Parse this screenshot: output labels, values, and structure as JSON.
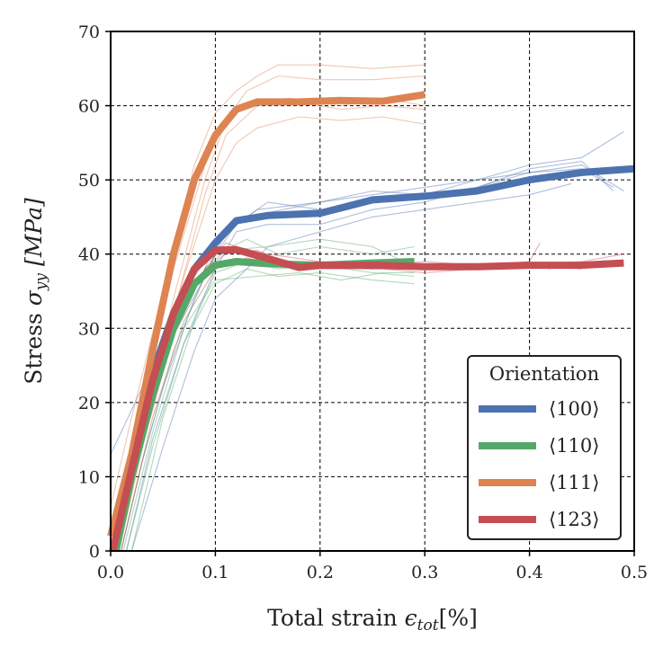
{
  "chart_data": {
    "type": "line",
    "title": "",
    "xlabel_main": "Total strain ",
    "xlabel_symbol": "ϵ",
    "xlabel_sub": "tot",
    "xlabel_unit": "[%]",
    "ylabel_main": "Stress ",
    "ylabel_symbol": "σ",
    "ylabel_sub": "yy",
    "ylabel_unit": "[MPa]",
    "xlim": [
      0.0,
      0.5
    ],
    "ylim": [
      0,
      70
    ],
    "xticks": [
      "0.0",
      "0.1",
      "0.2",
      "0.3",
      "0.4",
      "0.5"
    ],
    "yticks": [
      "0",
      "10",
      "20",
      "30",
      "40",
      "50",
      "60",
      "70"
    ],
    "grid": true,
    "legend": {
      "title": "Orientation",
      "position": "lower-right",
      "entries": [
        "⟨100⟩",
        "⟨110⟩",
        "⟨111⟩",
        "⟨123⟩"
      ]
    },
    "series": [
      {
        "name": "⟨100⟩",
        "color": "#4c72b0",
        "mean": [
          [
            0.003,
            0
          ],
          [
            0.02,
            12
          ],
          [
            0.04,
            24
          ],
          [
            0.06,
            32
          ],
          [
            0.08,
            38
          ],
          [
            0.1,
            41.5
          ],
          [
            0.12,
            44.5
          ],
          [
            0.15,
            45.2
          ],
          [
            0.2,
            45.5
          ],
          [
            0.25,
            47.3
          ],
          [
            0.3,
            47.8
          ],
          [
            0.35,
            48.5
          ],
          [
            0.4,
            50
          ],
          [
            0.45,
            51
          ],
          [
            0.5,
            51.5
          ]
        ],
        "samples": [
          [
            [
              0,
              13
            ],
            [
              0.03,
              22
            ],
            [
              0.06,
              31
            ],
            [
              0.09,
              38
            ],
            [
              0.1,
              42
            ],
            [
              0.13,
              45
            ],
            [
              0.2,
              47
            ],
            [
              0.25,
              48
            ],
            [
              0.3,
              49
            ],
            [
              0.35,
              50
            ],
            [
              0.4,
              52
            ],
            [
              0.45,
              53
            ],
            [
              0.49,
              56.5
            ]
          ],
          [
            [
              0.01,
              0
            ],
            [
              0.03,
              12
            ],
            [
              0.05,
              22
            ],
            [
              0.08,
              34
            ],
            [
              0.1,
              40
            ],
            [
              0.12,
              44
            ],
            [
              0.15,
              47
            ],
            [
              0.2,
              46
            ],
            [
              0.25,
              47
            ],
            [
              0.3,
              48
            ],
            [
              0.35,
              49
            ],
            [
              0.4,
              51
            ],
            [
              0.45,
              51.5
            ],
            [
              0.48,
              49
            ]
          ],
          [
            [
              0.015,
              0
            ],
            [
              0.04,
              15
            ],
            [
              0.07,
              28
            ],
            [
              0.1,
              38
            ],
            [
              0.12,
              43
            ],
            [
              0.15,
              44
            ],
            [
              0.2,
              44
            ],
            [
              0.25,
              46
            ],
            [
              0.3,
              47
            ],
            [
              0.35,
              49
            ],
            [
              0.4,
              51.5
            ],
            [
              0.45,
              52.5
            ],
            [
              0.48,
              48.5
            ]
          ],
          [
            [
              0.02,
              0
            ],
            [
              0.05,
              14
            ],
            [
              0.08,
              27
            ],
            [
              0.1,
              34
            ],
            [
              0.13,
              38
            ],
            [
              0.15,
              41
            ],
            [
              0.2,
              43
            ],
            [
              0.25,
              45
            ],
            [
              0.3,
              46
            ],
            [
              0.35,
              47
            ],
            [
              0.4,
              48
            ],
            [
              0.44,
              49.5
            ]
          ],
          [
            [
              0.005,
              0
            ],
            [
              0.03,
              15
            ],
            [
              0.06,
              29
            ],
            [
              0.09,
              37
            ],
            [
              0.11,
              43
            ],
            [
              0.14,
              46
            ],
            [
              0.2,
              47
            ],
            [
              0.25,
              48.5
            ],
            [
              0.3,
              48
            ],
            [
              0.35,
              50
            ],
            [
              0.4,
              51
            ],
            [
              0.45,
              52
            ],
            [
              0.49,
              48.5
            ]
          ]
        ]
      },
      {
        "name": "⟨110⟩",
        "color": "#55a868",
        "mean": [
          [
            0.005,
            0
          ],
          [
            0.02,
            10
          ],
          [
            0.04,
            21
          ],
          [
            0.06,
            30
          ],
          [
            0.08,
            36
          ],
          [
            0.1,
            38.5
          ],
          [
            0.12,
            39
          ],
          [
            0.15,
            38.7
          ],
          [
            0.2,
            38.5
          ],
          [
            0.25,
            38.8
          ],
          [
            0.29,
            39
          ]
        ],
        "samples": [
          [
            [
              0.01,
              0
            ],
            [
              0.03,
              12
            ],
            [
              0.06,
              27
            ],
            [
              0.09,
              37
            ],
            [
              0.1,
              40
            ],
            [
              0.13,
              42
            ],
            [
              0.16,
              40
            ],
            [
              0.2,
              41
            ],
            [
              0.25,
              40
            ],
            [
              0.29,
              41
            ]
          ],
          [
            [
              0.015,
              0
            ],
            [
              0.04,
              14
            ],
            [
              0.07,
              28
            ],
            [
              0.1,
              36
            ],
            [
              0.13,
              38
            ],
            [
              0.16,
              37
            ],
            [
              0.2,
              37.5
            ],
            [
              0.25,
              36.5
            ],
            [
              0.29,
              36
            ]
          ],
          [
            [
              0.02,
              0
            ],
            [
              0.05,
              18
            ],
            [
              0.08,
              31
            ],
            [
              0.1,
              37.5
            ],
            [
              0.13,
              39
            ],
            [
              0.16,
              38
            ],
            [
              0.2,
              38.5
            ],
            [
              0.25,
              37.5
            ],
            [
              0.29,
              37
            ]
          ],
          [
            [
              0.008,
              0
            ],
            [
              0.03,
              15
            ],
            [
              0.06,
              30
            ],
            [
              0.09,
              38
            ],
            [
              0.11,
              40.5
            ],
            [
              0.15,
              41
            ],
            [
              0.2,
              42
            ],
            [
              0.25,
              41
            ],
            [
              0.28,
              39
            ]
          ],
          [
            [
              0.012,
              0
            ],
            [
              0.04,
              16
            ],
            [
              0.07,
              30
            ],
            [
              0.1,
              36.5
            ],
            [
              0.14,
              37
            ],
            [
              0.18,
              37.5
            ],
            [
              0.22,
              36.5
            ],
            [
              0.26,
              37.5
            ],
            [
              0.29,
              37.5
            ]
          ]
        ]
      },
      {
        "name": "⟨111⟩",
        "color": "#dd8452",
        "mean": [
          [
            0,
            2
          ],
          [
            0.02,
            13
          ],
          [
            0.04,
            27
          ],
          [
            0.06,
            40
          ],
          [
            0.08,
            50
          ],
          [
            0.1,
            56
          ],
          [
            0.12,
            59.5
          ],
          [
            0.14,
            60.5
          ],
          [
            0.18,
            60.5
          ],
          [
            0.22,
            60.7
          ],
          [
            0.26,
            60.6
          ],
          [
            0.3,
            61.5
          ]
        ],
        "samples": [
          [
            [
              0,
              6
            ],
            [
              0.02,
              18
            ],
            [
              0.05,
              35
            ],
            [
              0.08,
              52
            ],
            [
              0.1,
              59
            ],
            [
              0.12,
              62
            ],
            [
              0.14,
              64
            ],
            [
              0.16,
              65.5
            ],
            [
              0.2,
              65.5
            ],
            [
              0.25,
              65
            ],
            [
              0.3,
              65.5
            ]
          ],
          [
            [
              0,
              0
            ],
            [
              0.03,
              16
            ],
            [
              0.06,
              34
            ],
            [
              0.09,
              50
            ],
            [
              0.11,
              58
            ],
            [
              0.13,
              62
            ],
            [
              0.16,
              64
            ],
            [
              0.2,
              63.5
            ],
            [
              0.25,
              63.5
            ],
            [
              0.3,
              64
            ]
          ],
          [
            [
              0.005,
              0
            ],
            [
              0.03,
              15
            ],
            [
              0.06,
              32
            ],
            [
              0.09,
              48
            ],
            [
              0.11,
              56
            ],
            [
              0.14,
              60
            ],
            [
              0.18,
              60.5
            ],
            [
              0.22,
              59.5
            ],
            [
              0.26,
              60
            ],
            [
              0.3,
              59.5
            ]
          ],
          [
            [
              0.008,
              0
            ],
            [
              0.04,
              20
            ],
            [
              0.07,
              37
            ],
            [
              0.1,
              50
            ],
            [
              0.12,
              55
            ],
            [
              0.14,
              57
            ],
            [
              0.18,
              58.5
            ],
            [
              0.22,
              58
            ],
            [
              0.26,
              58.5
            ],
            [
              0.3,
              57.5
            ]
          ],
          [
            [
              0.002,
              3
            ],
            [
              0.03,
              20
            ],
            [
              0.06,
              38
            ],
            [
              0.09,
              52
            ],
            [
              0.11,
              58
            ],
            [
              0.13,
              60
            ],
            [
              0.17,
              61
            ],
            [
              0.22,
              60
            ],
            [
              0.26,
              61
            ],
            [
              0.3,
              60
            ]
          ]
        ]
      },
      {
        "name": "⟨123⟩",
        "color": "#c44e52",
        "mean": [
          [
            0.002,
            0
          ],
          [
            0.02,
            11
          ],
          [
            0.04,
            23
          ],
          [
            0.06,
            32
          ],
          [
            0.08,
            38
          ],
          [
            0.1,
            40.5
          ],
          [
            0.12,
            40.6
          ],
          [
            0.14,
            39.8
          ],
          [
            0.16,
            39
          ],
          [
            0.18,
            38.2
          ],
          [
            0.2,
            38.5
          ],
          [
            0.25,
            38.5
          ],
          [
            0.3,
            38.3
          ],
          [
            0.35,
            38.3
          ],
          [
            0.4,
            38.5
          ],
          [
            0.45,
            38.5
          ],
          [
            0.49,
            38.8
          ]
        ],
        "samples": [
          [
            [
              0,
              3
            ],
            [
              0.02,
              14
            ],
            [
              0.05,
              28
            ],
            [
              0.08,
              37
            ],
            [
              0.1,
              41
            ],
            [
              0.12,
              41
            ],
            [
              0.15,
              40
            ],
            [
              0.2,
              39
            ],
            [
              0.25,
              38.5
            ],
            [
              0.3,
              38
            ],
            [
              0.35,
              38.5
            ],
            [
              0.4,
              38.5
            ],
            [
              0.42,
              38
            ]
          ],
          [
            [
              0.005,
              0
            ],
            [
              0.03,
              16
            ],
            [
              0.06,
              30
            ],
            [
              0.09,
              38
            ],
            [
              0.11,
              41.5
            ],
            [
              0.14,
              40
            ],
            [
              0.18,
              38.5
            ],
            [
              0.22,
              39
            ],
            [
              0.26,
              38.5
            ],
            [
              0.3,
              39
            ],
            [
              0.35,
              38.5
            ],
            [
              0.4,
              39
            ],
            [
              0.41,
              41.5
            ]
          ],
          [
            [
              0.01,
              0
            ],
            [
              0.04,
              18
            ],
            [
              0.07,
              31
            ],
            [
              0.1,
              38
            ],
            [
              0.13,
              39.5
            ],
            [
              0.16,
              38.5
            ],
            [
              0.2,
              38.5
            ],
            [
              0.25,
              38
            ],
            [
              0.3,
              38.5
            ],
            [
              0.35,
              38
            ],
            [
              0.4,
              38.5
            ],
            [
              0.45,
              39
            ],
            [
              0.49,
              40
            ]
          ],
          [
            [
              0.003,
              0
            ],
            [
              0.03,
              14
            ],
            [
              0.06,
              29
            ],
            [
              0.09,
              38
            ],
            [
              0.11,
              40
            ],
            [
              0.14,
              40.5
            ],
            [
              0.18,
              38
            ],
            [
              0.22,
              38
            ],
            [
              0.26,
              38
            ],
            [
              0.3,
              37.5
            ],
            [
              0.35,
              38
            ],
            [
              0.4,
              38.5
            ],
            [
              0.45,
              38
            ]
          ]
        ]
      }
    ]
  }
}
